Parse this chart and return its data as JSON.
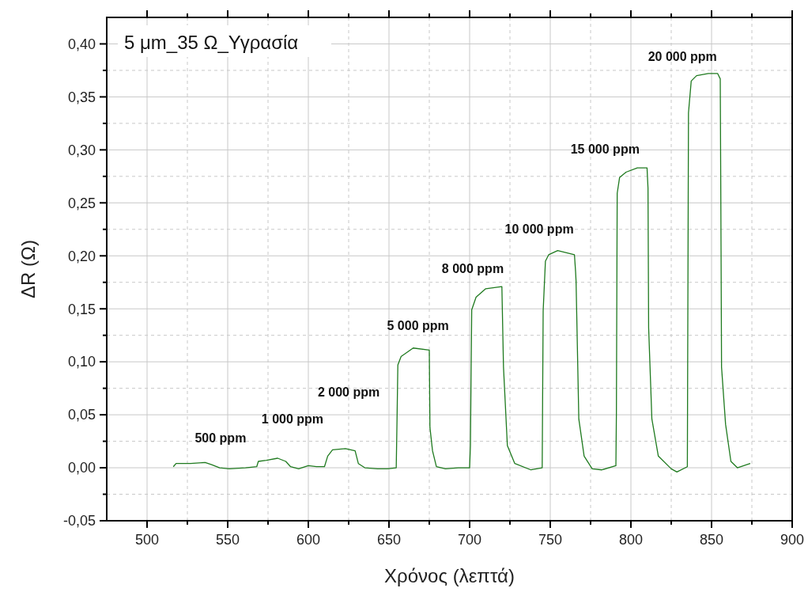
{
  "chart_data": {
    "type": "line",
    "title": "5 μm_35 Ω_Υγρασία",
    "xlabel": "Χρόνος (λεπτά)",
    "ylabel": "ΔR (Ω)",
    "xlim": [
      475,
      900
    ],
    "ylim": [
      -0.05,
      0.425
    ],
    "xticks": [
      500,
      {
        "value": 525,
        "label": null
      },
      550,
      {
        "value": 575,
        "label": null
      },
      600,
      {
        "value": 625,
        "label": null
      },
      650,
      {
        "value": 675,
        "label": null
      },
      700,
      {
        "value": 725,
        "label": null
      },
      750,
      {
        "value": 775,
        "label": null
      },
      800,
      {
        "value": 825,
        "label": null
      },
      850,
      {
        "value": 875,
        "label": null
      },
      900
    ],
    "yticks": [
      {
        "value": -0.05,
        "label": "-0,05"
      },
      {
        "value": -0.025,
        "label": null
      },
      {
        "value": 0,
        "label": "0,00"
      },
      {
        "value": 0.025,
        "label": null
      },
      {
        "value": 0.05,
        "label": "0,05"
      },
      {
        "value": 0.075,
        "label": null
      },
      {
        "value": 0.1,
        "label": "0,10"
      },
      {
        "value": 0.125,
        "label": null
      },
      {
        "value": 0.15,
        "label": "0,15"
      },
      {
        "value": 0.175,
        "label": null
      },
      {
        "value": 0.2,
        "label": "0,20"
      },
      {
        "value": 0.225,
        "label": null
      },
      {
        "value": 0.25,
        "label": "0,25"
      },
      {
        "value": 0.275,
        "label": null
      },
      {
        "value": 0.3,
        "label": "0,30"
      },
      {
        "value": 0.325,
        "label": null
      },
      {
        "value": 0.35,
        "label": "0,35"
      },
      {
        "value": 0.375,
        "label": null
      },
      {
        "value": 0.4,
        "label": "0,40"
      }
    ],
    "grid": true,
    "marker": "none",
    "line_style": "solid",
    "series": [
      {
        "color": "#1f7a1f",
        "x": [
          516.3,
          518,
          527,
          536,
          540,
          545,
          551,
          561,
          568,
          569,
          574,
          581,
          586,
          589,
          594,
          600,
          605,
          610,
          612,
          615,
          623,
          629,
          631,
          635,
          643,
          649,
          654.5,
          655,
          655.5,
          657.5,
          665,
          675,
          675.4,
          677,
          679.4,
          685,
          693,
          700,
          700.5,
          701.3,
          704,
          710,
          720,
          721,
          723.4,
          728,
          738,
          745,
          745.6,
          747,
          749,
          754.6,
          765,
          765.7,
          766,
          767.7,
          771,
          776,
          782,
          790.7,
          791,
          791.5,
          793,
          797,
          804,
          810,
          810.6,
          811,
          813,
          817,
          825,
          828.5,
          835,
          835.7,
          837.4,
          840.7,
          848,
          853.8,
          855.4,
          855.9,
          856.2,
          858.7,
          862,
          866,
          874
        ],
        "values": [
          0.001,
          0.004,
          0.004,
          0.005,
          0.003,
          0,
          -0.001,
          0,
          0.001,
          0.006,
          0.007,
          0.009,
          0.006,
          0.001,
          -0.001,
          0.002,
          0.001,
          0.001,
          0.011,
          0.017,
          0.018,
          0.016,
          0.004,
          0,
          -0.001,
          -0.001,
          0,
          0.046,
          0.097,
          0.105,
          0.113,
          0.111,
          0.038,
          0.016,
          0.001,
          -0.001,
          0,
          0,
          0.021,
          0.149,
          0.161,
          0.169,
          0.171,
          0.095,
          0.021,
          0.004,
          -0.002,
          0,
          0.148,
          0.195,
          0.201,
          0.205,
          0.201,
          0.185,
          0.176,
          0.046,
          0.011,
          -0.001,
          -0.002,
          0.002,
          0.05,
          0.259,
          0.274,
          0.279,
          0.283,
          0.283,
          0.264,
          0.132,
          0.046,
          0.011,
          -0.001,
          -0.004,
          0.001,
          0.335,
          0.365,
          0.37,
          0.372,
          0.372,
          0.367,
          0.205,
          0.095,
          0.041,
          0.006,
          0,
          0.004
        ]
      }
    ],
    "annotations": [
      "500 ppm",
      "1 000 ppm",
      "2 000 ppm",
      "5 000 ppm",
      "8 000 ppm",
      "10 000 ppm",
      "15 000 ppm",
      "20 000 ppm"
    ]
  }
}
